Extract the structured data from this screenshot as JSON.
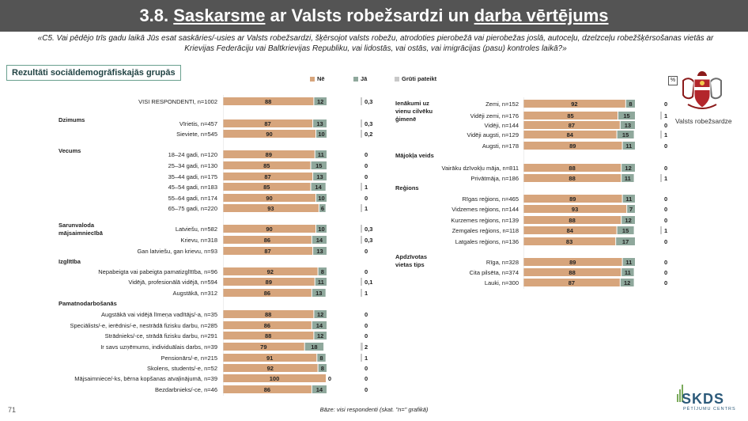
{
  "title": {
    "prefix": "3.8. ",
    "part1": "Saskarsme",
    "mid": " ar Valsts robežsardzi un ",
    "part2": "darba vērtējums"
  },
  "question": "«C5. Vai pēdējo trīs gadu laikā Jūs esat saskāries/-usies ar Valsts robežsardzi, šķērsojot valsts robežu, atrodoties pierobežā vai pierobežas joslā, autoceļu, dzelzceļu robežšķērsošanas vietās ar Krievijas Federāciju vai Baltkrievijas Republiku, vai lidostās, vai ostās, vai imigrācijas (pasu) kontroles laikā?»",
  "badge": "Rezultāti sociāldemogrāfiskajās grupās",
  "percent_symbol": "%",
  "emblem_label": "Valsts robežsardze",
  "footer": "Bāze: visi respondenti (skat. \"n=\" grafikā)",
  "page_number": "71",
  "logo": {
    "name": "SKDS",
    "sub": "PĒTĪJUMU CENTRS"
  },
  "colors": {
    "ne": "#d7a57c",
    "ja": "#8fa89c",
    "grutipateikt": "#c8c8c8",
    "header": "#545454"
  },
  "chart_data": {
    "type": "bar",
    "stacked": true,
    "unit": "%",
    "series_names": [
      "Nē",
      "Jā",
      "Grūti pateikt"
    ],
    "panels": [
      {
        "groups": [
          {
            "label": "",
            "rows": [
              {
                "label": "VISI RESPONDENTI, n=1002",
                "ne": 88,
                "ja": 12,
                "gp": "0,3"
              }
            ]
          },
          {
            "label": "Dzimums",
            "rows": [
              {
                "label": "Vīrietis, n=457",
                "ne": 87,
                "ja": 13,
                "gp": "0,3"
              },
              {
                "label": "Sieviete, n=545",
                "ne": 90,
                "ja": 10,
                "gp": "0,2"
              }
            ]
          },
          {
            "label": "Vecums",
            "rows": [
              {
                "label": "18–24 gadi, n=120",
                "ne": 89,
                "ja": 11,
                "gp": "0"
              },
              {
                "label": "25–34 gadi, n=130",
                "ne": 85,
                "ja": 15,
                "gp": "0"
              },
              {
                "label": "35–44 gadi, n=175",
                "ne": 87,
                "ja": 13,
                "gp": "0"
              },
              {
                "label": "45–54 gadi, n=183",
                "ne": 85,
                "ja": 14,
                "gp": "1"
              },
              {
                "label": "55–64 gadi, n=174",
                "ne": 90,
                "ja": 10,
                "gp": "0"
              },
              {
                "label": "65–75 gadi, n=220",
                "ne": 93,
                "ja": 6,
                "gp": "1"
              }
            ]
          },
          {
            "label": "Sarunvaloda mājsaimniecībā",
            "rows": [
              {
                "label": "Latviešu, n=582",
                "ne": 90,
                "ja": 10,
                "gp": "0,3"
              },
              {
                "label": "Krievu, n=318",
                "ne": 86,
                "ja": 14,
                "gp": "0,3"
              },
              {
                "label": "Gan latviešu, gan krievu, n=93",
                "ne": 87,
                "ja": 13,
                "gp": "0"
              }
            ]
          },
          {
            "label": "Izglītība",
            "rows": [
              {
                "label": "Nepabeigta vai pabeigta pamatizglītība, n=96",
                "ne": 92,
                "ja": 8,
                "gp": "0"
              },
              {
                "label": "Vidējā, profesionālā vidējā, n=594",
                "ne": 89,
                "ja": 11,
                "gp": "0,1"
              },
              {
                "label": "Augstākā, n=312",
                "ne": 86,
                "ja": 13,
                "gp": "1"
              }
            ]
          },
          {
            "label": "Pamatnodarbošanās",
            "rows": [
              {
                "label": "Augstākā vai vidējā līmeņa vadītājs/-a, n=35",
                "ne": 88,
                "ja": 12,
                "gp": "0"
              },
              {
                "label": "Speciālists/-e, ierēdnis/-e, nestrādā fizisku darbu, n=285",
                "ne": 86,
                "ja": 14,
                "gp": "0"
              },
              {
                "label": "Strādnieks/-ce, strādā fizisku darbu, n=291",
                "ne": 88,
                "ja": 12,
                "gp": "0"
              },
              {
                "label": "Ir savs uzņēmums, individuālais darbs, n=39",
                "ne": 79,
                "ja": 18,
                "gp": "2"
              },
              {
                "label": "Pensionārs/-e, n=215",
                "ne": 91,
                "ja": 8,
                "gp": "1"
              },
              {
                "label": "Skolens, students/-e, n=52",
                "ne": 92,
                "ja": 8,
                "gp": "0"
              },
              {
                "label": "Mājsaimniece/-ks, bērna kopšanas atvaļinājumā, n=39",
                "ne": 100,
                "ja": 0,
                "gp": "0"
              },
              {
                "label": "Bezdarbnieks/-ce, n=46",
                "ne": 86,
                "ja": 14,
                "gp": "0"
              }
            ]
          }
        ]
      },
      {
        "groups": [
          {
            "label": "Ienākumi uz vienu cilvēku ģimenē",
            "rows": [
              {
                "label": "Zemi, n=152",
                "ne": 92,
                "ja": 8,
                "gp": "0"
              },
              {
                "label": "Vidēji zemi, n=176",
                "ne": 85,
                "ja": 15,
                "gp": "1"
              },
              {
                "label": "Vidēji, n=144",
                "ne": 87,
                "ja": 13,
                "gp": "0"
              },
              {
                "label": "Vidēji augsti, n=129",
                "ne": 84,
                "ja": 15,
                "gp": "1"
              },
              {
                "label": "Augsti, n=178",
                "ne": 89,
                "ja": 11,
                "gp": "0"
              }
            ]
          },
          {
            "label": "Mājokļa veids",
            "rows": [
              {
                "label": "Vairāku dzīvokļu māja, n=811",
                "ne": 88,
                "ja": 12,
                "gp": "0"
              },
              {
                "label": "Privātmāja, n=186",
                "ne": 88,
                "ja": 11,
                "gp": "1"
              }
            ]
          },
          {
            "label": "Reģions",
            "rows": [
              {
                "label": "Rīgas reģions, n=465",
                "ne": 89,
                "ja": 11,
                "gp": "0"
              },
              {
                "label": "Vidzemes reģions, n=144",
                "ne": 93,
                "ja": 7,
                "gp": "0"
              },
              {
                "label": "Kurzemes reģions, n=139",
                "ne": 88,
                "ja": 12,
                "gp": "0"
              },
              {
                "label": "Zemgales reģions, n=118",
                "ne": 84,
                "ja": 15,
                "gp": "1"
              },
              {
                "label": "Latgales reģions, n=136",
                "ne": 83,
                "ja": 17,
                "gp": "0"
              }
            ]
          },
          {
            "label": "Apdzīvotas vietas tips",
            "rows": [
              {
                "label": "Rīga, n=328",
                "ne": 89,
                "ja": 11,
                "gp": "0"
              },
              {
                "label": "Cita pilsēta, n=374",
                "ne": 88,
                "ja": 11,
                "gp": "0"
              },
              {
                "label": "Lauki, n=300",
                "ne": 87,
                "ja": 12,
                "gp": "0"
              }
            ]
          }
        ]
      }
    ]
  }
}
